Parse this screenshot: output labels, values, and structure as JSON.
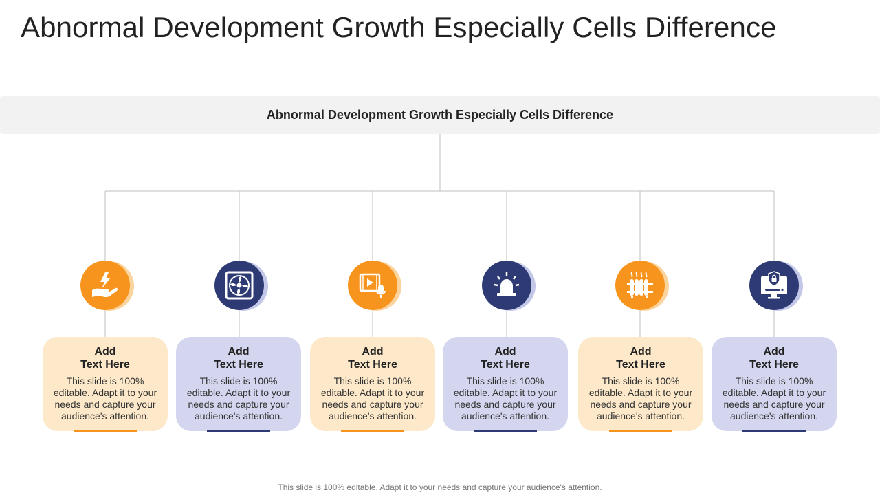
{
  "slide": {
    "title": "Abnormal Development Growth Especially Cells Difference",
    "banner": "Abnormal Development Growth Especially Cells Difference",
    "footer": "This slide is 100% editable. Adapt it to your needs and capture your audience's attention."
  },
  "colors": {
    "orange": "#f7941d",
    "orange_light": "#fde9c9",
    "orange_shadow": "#fbd39c",
    "navy": "#2e3a74",
    "navy_light": "#d3d6ee",
    "navy_shadow": "#c3c7e8",
    "connector": "#bfbfbf"
  },
  "items": [
    {
      "icon": "hand-lightning-icon",
      "theme": "orange",
      "heading_1": "Add",
      "heading_2": "Text Here",
      "body": "This slide is 100% editable. Adapt it to your needs and capture your audience's attention."
    },
    {
      "icon": "fan-icon",
      "theme": "navy",
      "heading_1": "Add",
      "heading_2": "Text Here",
      "body": "This slide is 100% editable. Adapt it to your needs and capture your audience's attention."
    },
    {
      "icon": "video-mic-icon",
      "theme": "orange",
      "heading_1": "Add",
      "heading_2": "Text Here",
      "body": "This slide is 100% editable. Adapt it to your needs and capture your audience's attention."
    },
    {
      "icon": "alarm-siren-icon",
      "theme": "navy",
      "heading_1": "Add",
      "heading_2": "Text Here",
      "body": "This slide is 100% editable. Adapt it to your needs and capture your audience's attention."
    },
    {
      "icon": "heater-icon",
      "theme": "orange",
      "heading_1": "Add",
      "heading_2": "Text Here",
      "body": "This slide is 100% editable. Adapt it to your needs and capture your audience's attention."
    },
    {
      "icon": "secure-computer-icon",
      "theme": "navy",
      "heading_1": "Add",
      "heading_2": "Text Here",
      "body": "This slide is 100% editable. Adapt it to your needs and capture your audience's attention."
    }
  ]
}
